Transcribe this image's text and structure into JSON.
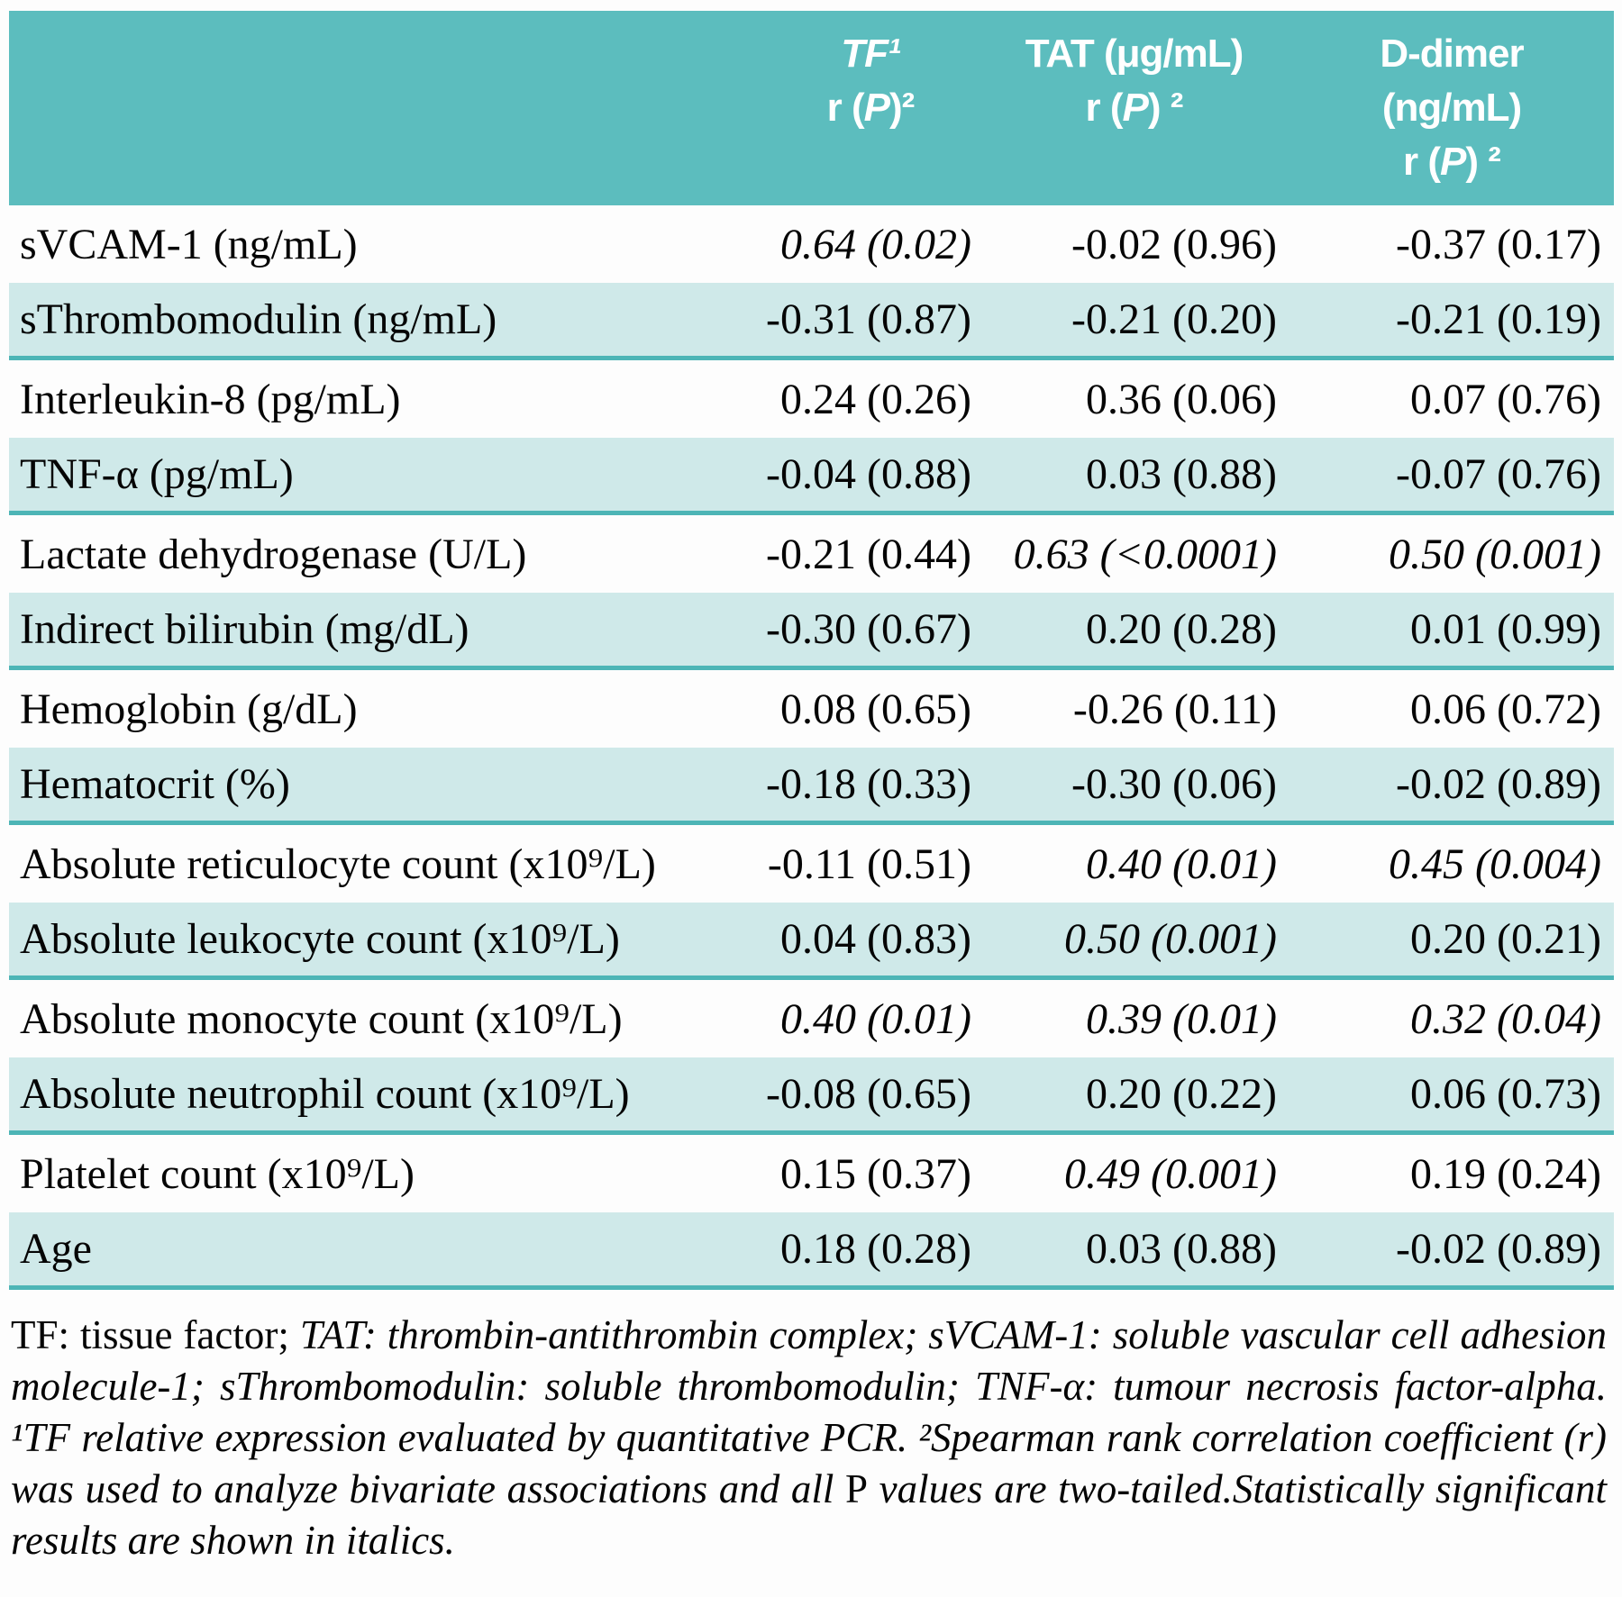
{
  "colors": {
    "header_teal": "#5cbdbe",
    "row_shade": "#cfe9e9",
    "row_separator": "#4db5b6",
    "text": "#050505",
    "header_text": "#ffffff"
  },
  "table": {
    "header": {
      "columns": [
        {
          "id": "parameter",
          "lines": []
        },
        {
          "id": "tf",
          "lines": [
            {
              "text": "TF¹",
              "italic": true
            },
            {
              "text": "r (P)²",
              "italic": false
            }
          ]
        },
        {
          "id": "tat",
          "lines": [
            {
              "text": "TAT (μg/mL)",
              "italic": false
            },
            {
              "text": "r (P) ²",
              "italic": false
            }
          ]
        },
        {
          "id": "ddimer",
          "lines": [
            {
              "text": "D-dimer",
              "italic": false
            },
            {
              "text": "(ng/mL)",
              "italic": false
            },
            {
              "text": "r (P) ²",
              "italic": false
            }
          ]
        }
      ]
    },
    "rows": [
      {
        "label": "sVCAM-1 (ng/mL)",
        "shaded": false,
        "cells": [
          {
            "v": "0.64 (0.02)",
            "sig": true
          },
          {
            "v": "-0.02 (0.96)",
            "sig": false
          },
          {
            "v": "-0.37 (0.17)",
            "sig": false
          }
        ]
      },
      {
        "label": "sThrombomodulin (ng/mL)",
        "shaded": true,
        "cells": [
          {
            "v": "-0.31 (0.87)",
            "sig": false
          },
          {
            "v": "-0.21 (0.20)",
            "sig": false
          },
          {
            "v": "-0.21 (0.19)",
            "sig": false
          }
        ]
      },
      {
        "label": "Interleukin-8 (pg/mL)",
        "shaded": false,
        "cells": [
          {
            "v": "0.24 (0.26)",
            "sig": false
          },
          {
            "v": "0.36 (0.06)",
            "sig": false
          },
          {
            "v": "0.07 (0.76)",
            "sig": false
          }
        ]
      },
      {
        "label": "TNF-α (pg/mL)",
        "shaded": true,
        "cells": [
          {
            "v": "-0.04 (0.88)",
            "sig": false
          },
          {
            "v": "0.03 (0.88)",
            "sig": false
          },
          {
            "v": "-0.07 (0.76)",
            "sig": false
          }
        ]
      },
      {
        "label": "Lactate dehydrogenase (U/L)",
        "shaded": false,
        "cells": [
          {
            "v": "-0.21 (0.44)",
            "sig": false
          },
          {
            "v": "0.63 (<0.0001)",
            "sig": true
          },
          {
            "v": "0.50 (0.001)",
            "sig": true
          }
        ]
      },
      {
        "label": "Indirect bilirubin (mg/dL)",
        "shaded": true,
        "cells": [
          {
            "v": "-0.30 (0.67)",
            "sig": false
          },
          {
            "v": "0.20 (0.28)",
            "sig": false
          },
          {
            "v": "0.01 (0.99)",
            "sig": false
          }
        ]
      },
      {
        "label": "Hemoglobin (g/dL)",
        "shaded": false,
        "cells": [
          {
            "v": "0.08 (0.65)",
            "sig": false
          },
          {
            "v": "-0.26 (0.11)",
            "sig": false
          },
          {
            "v": "0.06 (0.72)",
            "sig": false
          }
        ]
      },
      {
        "label": "Hematocrit (%)",
        "shaded": true,
        "cells": [
          {
            "v": "-0.18 (0.33)",
            "sig": false
          },
          {
            "v": "-0.30 (0.06)",
            "sig": false
          },
          {
            "v": "-0.02 (0.89)",
            "sig": false
          }
        ]
      },
      {
        "label": "Absolute reticulocyte count (x10⁹/L)",
        "shaded": false,
        "cells": [
          {
            "v": "-0.11 (0.51)",
            "sig": false
          },
          {
            "v": "0.40 (0.01)",
            "sig": true
          },
          {
            "v": "0.45 (0.004)",
            "sig": true
          }
        ]
      },
      {
        "label": "Absolute leukocyte count (x10⁹/L)",
        "shaded": true,
        "cells": [
          {
            "v": "0.04 (0.83)",
            "sig": false
          },
          {
            "v": "0.50 (0.001)",
            "sig": true
          },
          {
            "v": "0.20 (0.21)",
            "sig": false
          }
        ]
      },
      {
        "label": "Absolute monocyte count (x10⁹/L)",
        "shaded": false,
        "cells": [
          {
            "v": "0.40 (0.01)",
            "sig": true
          },
          {
            "v": "0.39 (0.01)",
            "sig": true
          },
          {
            "v": "0.32 (0.04)",
            "sig": true
          }
        ]
      },
      {
        "label": "Absolute neutrophil count (x10⁹/L)",
        "shaded": true,
        "cells": [
          {
            "v": "-0.08 (0.65)",
            "sig": false
          },
          {
            "v": "0.20 (0.22)",
            "sig": false
          },
          {
            "v": "0.06 (0.73)",
            "sig": false
          }
        ]
      },
      {
        "label": "Platelet count (x10⁹/L)",
        "shaded": false,
        "cells": [
          {
            "v": "0.15 (0.37)",
            "sig": false
          },
          {
            "v": "0.49 (0.001)",
            "sig": true
          },
          {
            "v": "0.19 (0.24)",
            "sig": false
          }
        ]
      },
      {
        "label": "Age",
        "shaded": true,
        "cells": [
          {
            "v": "0.18 (0.28)",
            "sig": false
          },
          {
            "v": "0.03 (0.88)",
            "sig": false
          },
          {
            "v": "-0.02 (0.89)",
            "sig": false
          }
        ]
      }
    ]
  },
  "footnote": {
    "segments": [
      {
        "text": "TF: tissue factor; ",
        "italic": false
      },
      {
        "text": "TAT: thrombin-antithrombin complex; sVCAM-1: soluble vascular cell adhesion molecule-1; sThrombomodulin: soluble thrombomodulin; TNF-α: tumour necrosis factor-alpha. ¹TF relative expression evaluated by quantitative PCR. ²Spearman rank correlation coefficient (r) was used to analyze bivariate associations and all ",
        "italic": true
      },
      {
        "text": "P",
        "italic": false
      },
      {
        "text": " values are two-tailed.Statistically significant results are shown in italics.",
        "italic": true
      }
    ]
  }
}
